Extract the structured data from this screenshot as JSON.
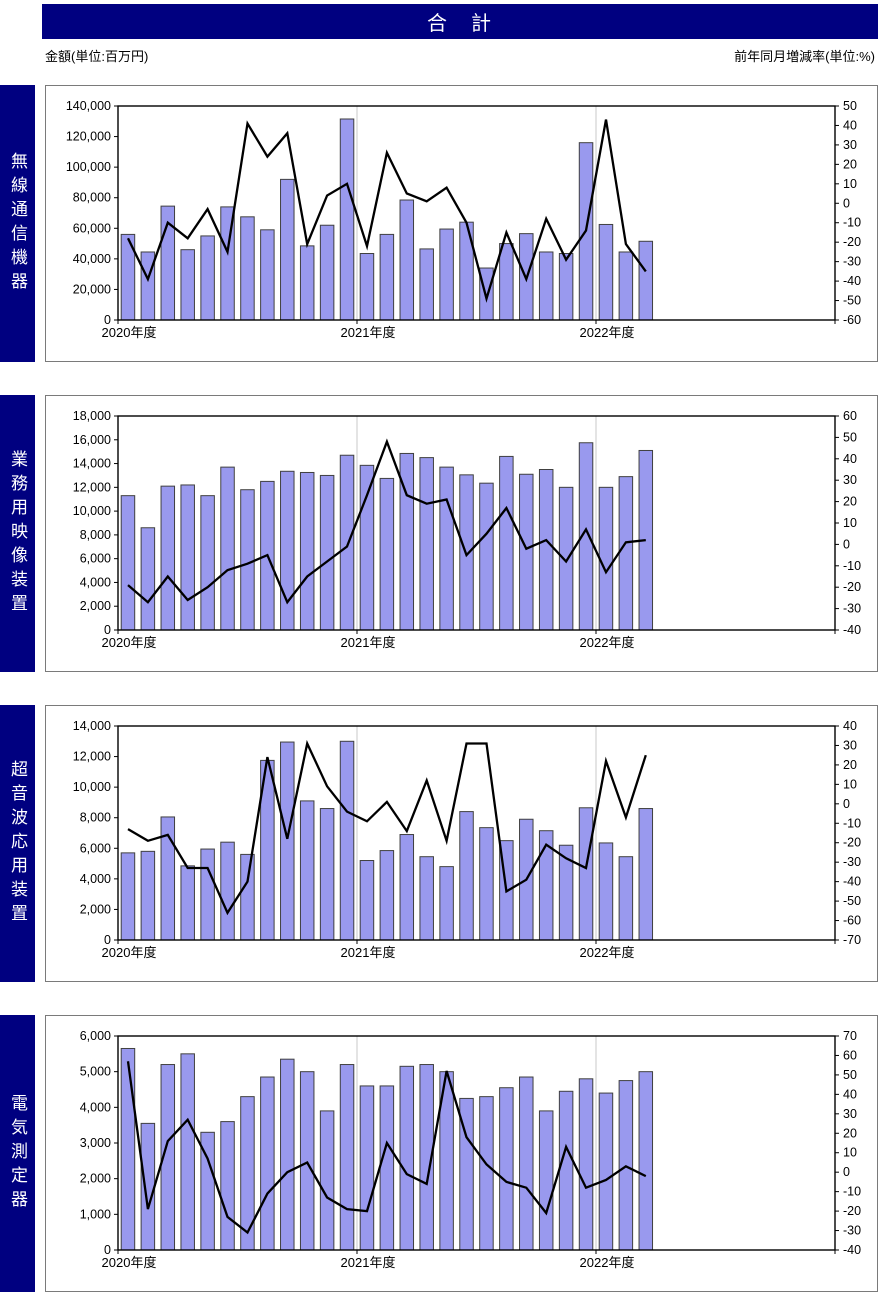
{
  "header": {
    "title": "合　計"
  },
  "captions": {
    "left_unit": "金額(単位:百万円)",
    "right_unit": "前年同月増減率(単位:%)"
  },
  "colors": {
    "navy": "#000080",
    "bar_fill": "#9999EE",
    "bar_border": "#404040",
    "line": "#000000",
    "year_gridline": "#C9C9C9",
    "box_border": "#7A7A7A",
    "axis": "#000000"
  },
  "chart_data": [
    {
      "type": "bar+line",
      "title": "無線通信機器",
      "x": [
        "2020-04",
        "2020-05",
        "2020-06",
        "2020-07",
        "2020-08",
        "2020-09",
        "2020-10",
        "2020-11",
        "2020-12",
        "2021-01",
        "2021-02",
        "2021-03",
        "2021-04",
        "2021-05",
        "2021-06",
        "2021-07",
        "2021-08",
        "2021-09",
        "2021-10",
        "2021-11",
        "2021-12",
        "2022-01",
        "2022-02",
        "2022-03",
        "2022-04",
        "2022-05",
        "2022-06"
      ],
      "x_tick_labels": [
        "2020年度",
        "2021年度",
        "2022年度"
      ],
      "series": [
        {
          "name": "金額",
          "type": "bar",
          "axis": "left",
          "values": [
            56000,
            44500,
            74500,
            46000,
            55000,
            74000,
            67500,
            59000,
            92000,
            48500,
            62000,
            131500,
            43500,
            56000,
            78500,
            46500,
            59500,
            64000,
            34000,
            50000,
            56500,
            44500,
            43500,
            116000,
            62500,
            44500,
            51500
          ]
        },
        {
          "name": "前年同月増減率",
          "type": "line",
          "axis": "right",
          "values": [
            -18,
            -39,
            -10,
            -18,
            -3,
            -25,
            41,
            24,
            36,
            -21,
            4,
            10,
            -22,
            26,
            5,
            1,
            8,
            -10,
            -49,
            -15,
            -39,
            -8,
            -29,
            -14,
            43,
            -21,
            -35
          ]
        }
      ],
      "left_axis": {
        "min": 0,
        "max": 140000,
        "step": 20000
      },
      "right_axis": {
        "min": -60,
        "max": 50,
        "step": 10
      },
      "months_per_row": 36,
      "grid": "year-boundaries-only",
      "legend": "none"
    },
    {
      "type": "bar+line",
      "title": "業務用映像装置",
      "x": [
        "2020-04",
        "2020-05",
        "2020-06",
        "2020-07",
        "2020-08",
        "2020-09",
        "2020-10",
        "2020-11",
        "2020-12",
        "2021-01",
        "2021-02",
        "2021-03",
        "2021-04",
        "2021-05",
        "2021-06",
        "2021-07",
        "2021-08",
        "2021-09",
        "2021-10",
        "2021-11",
        "2021-12",
        "2022-01",
        "2022-02",
        "2022-03",
        "2022-04",
        "2022-05",
        "2022-06"
      ],
      "x_tick_labels": [
        "2020年度",
        "2021年度",
        "2022年度"
      ],
      "series": [
        {
          "name": "金額",
          "type": "bar",
          "axis": "left",
          "values": [
            11300,
            8600,
            12100,
            12200,
            11300,
            13700,
            11800,
            12500,
            13350,
            13250,
            13000,
            14700,
            13850,
            12750,
            14850,
            14500,
            13700,
            13050,
            12350,
            14600,
            13100,
            13500,
            12000,
            15750,
            12000,
            12900,
            15100
          ]
        },
        {
          "name": "前年同月増減率",
          "type": "line",
          "axis": "right",
          "values": [
            -19,
            -27,
            -15,
            -26,
            -20,
            -12,
            -9,
            -5,
            -27,
            -15,
            -8,
            -1,
            23,
            48,
            23,
            19,
            21,
            -5,
            5,
            17,
            -2,
            2,
            -8,
            7,
            -13,
            1,
            2
          ]
        }
      ],
      "left_axis": {
        "min": 0,
        "max": 18000,
        "step": 2000
      },
      "right_axis": {
        "min": -40,
        "max": 60,
        "step": 10
      },
      "months_per_row": 36,
      "grid": "year-boundaries-only",
      "legend": "none"
    },
    {
      "type": "bar+line",
      "title": "超音波応用装置",
      "x": [
        "2020-04",
        "2020-05",
        "2020-06",
        "2020-07",
        "2020-08",
        "2020-09",
        "2020-10",
        "2020-11",
        "2020-12",
        "2021-01",
        "2021-02",
        "2021-03",
        "2021-04",
        "2021-05",
        "2021-06",
        "2021-07",
        "2021-08",
        "2021-09",
        "2021-10",
        "2021-11",
        "2021-12",
        "2022-01",
        "2022-02",
        "2022-03",
        "2022-04",
        "2022-05",
        "2022-06"
      ],
      "x_tick_labels": [
        "2020年度",
        "2021年度",
        "2022年度"
      ],
      "series": [
        {
          "name": "金額",
          "type": "bar",
          "axis": "left",
          "values": [
            5700,
            5800,
            8050,
            4850,
            5950,
            6400,
            5600,
            11750,
            12950,
            9100,
            8600,
            13000,
            5200,
            5850,
            6900,
            5450,
            4800,
            8400,
            7350,
            6500,
            7900,
            7150,
            6200,
            8650,
            6350,
            5450,
            8600
          ]
        },
        {
          "name": "前年同月増減率",
          "type": "line",
          "axis": "right",
          "values": [
            -13,
            -19,
            -16,
            -33,
            -33,
            -56,
            -40,
            24,
            -18,
            31,
            9,
            -4,
            -9,
            1,
            -14,
            12,
            -19,
            31,
            31,
            -45,
            -39,
            -21,
            -28,
            -33,
            22,
            -7,
            25
          ]
        }
      ],
      "left_axis": {
        "min": 0,
        "max": 14000,
        "step": 2000
      },
      "right_axis": {
        "min": -70,
        "max": 40,
        "step": 10
      },
      "months_per_row": 36,
      "grid": "year-boundaries-only",
      "legend": "none"
    },
    {
      "type": "bar+line",
      "title": "電気測定器",
      "x": [
        "2020-04",
        "2020-05",
        "2020-06",
        "2020-07",
        "2020-08",
        "2020-09",
        "2020-10",
        "2020-11",
        "2020-12",
        "2021-01",
        "2021-02",
        "2021-03",
        "2021-04",
        "2021-05",
        "2021-06",
        "2021-07",
        "2021-08",
        "2021-09",
        "2021-10",
        "2021-11",
        "2021-12",
        "2022-01",
        "2022-02",
        "2022-03",
        "2022-04",
        "2022-05",
        "2022-06"
      ],
      "x_tick_labels": [
        "2020年度",
        "2021年度",
        "2022年度"
      ],
      "series": [
        {
          "name": "金額",
          "type": "bar",
          "axis": "left",
          "values": [
            5650,
            3550,
            5200,
            5500,
            3300,
            3600,
            4300,
            4850,
            5350,
            5000,
            3900,
            5200,
            4600,
            4600,
            5150,
            5200,
            5000,
            4250,
            4300,
            4550,
            4850,
            3900,
            4450,
            4800,
            4400,
            4750,
            5000
          ]
        },
        {
          "name": "前年同月増減率",
          "type": "line",
          "axis": "right",
          "values": [
            57,
            -19,
            16,
            27,
            7,
            -23,
            -31,
            -11,
            0,
            5,
            -13,
            -19,
            -20,
            15,
            -1,
            -6,
            52,
            18,
            4,
            -5,
            -8,
            -21,
            13,
            -8,
            -4,
            3,
            -2
          ]
        }
      ],
      "left_axis": {
        "min": 0,
        "max": 6000,
        "step": 1000
      },
      "right_axis": {
        "min": -40,
        "max": 70,
        "step": 10
      },
      "months_per_row": 36,
      "grid": "year-boundaries-only",
      "legend": "none"
    }
  ]
}
